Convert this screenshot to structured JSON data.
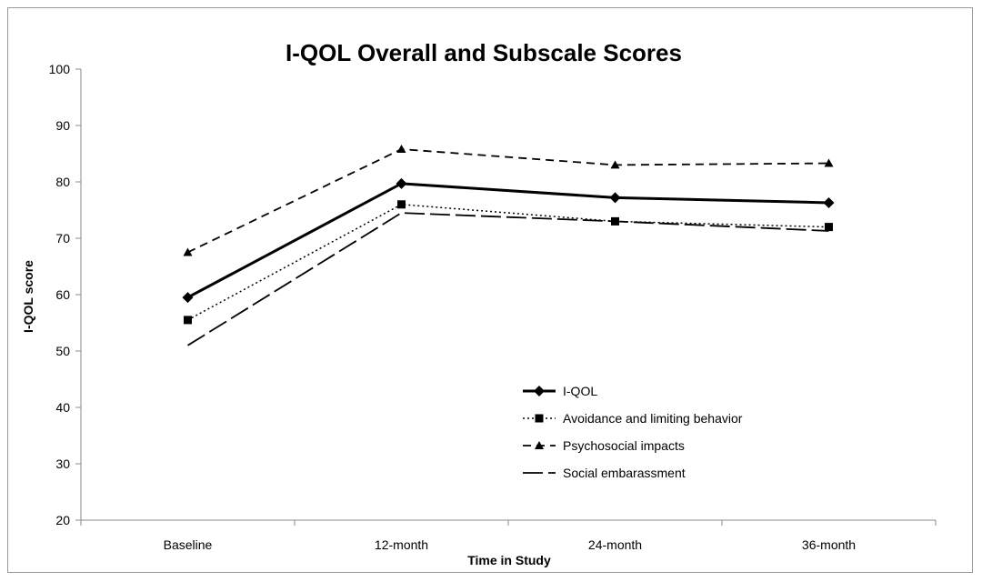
{
  "chart_data": {
    "type": "line",
    "title": "I-QOL Overall and Subscale Scores",
    "xlabel": "Time  in Study",
    "ylabel": "I-QOL score",
    "categories": [
      "Baseline",
      "12-month",
      "24-month",
      "36-month"
    ],
    "ylim": [
      20,
      100
    ],
    "yticks": [
      20,
      30,
      40,
      50,
      60,
      70,
      80,
      90,
      100
    ],
    "grid": false,
    "legend_position": "bottom-right",
    "series": [
      {
        "name": "I-QOL",
        "values": [
          59.5,
          79.7,
          77.2,
          76.3
        ],
        "marker": "diamond",
        "line": "solid-thick",
        "color": "#000000"
      },
      {
        "name": "Avoidance and limiting behavior",
        "values": [
          55.5,
          76.0,
          73.0,
          72.0
        ],
        "marker": "square",
        "line": "dotted",
        "color": "#000000"
      },
      {
        "name": "Psychosocial impacts",
        "values": [
          67.5,
          85.8,
          83.0,
          83.3
        ],
        "marker": "triangle",
        "line": "dashed",
        "color": "#000000"
      },
      {
        "name": "Social embarassment",
        "values": [
          51.0,
          74.5,
          73.0,
          71.3
        ],
        "marker": "none",
        "line": "long-dash",
        "color": "#000000"
      }
    ]
  }
}
